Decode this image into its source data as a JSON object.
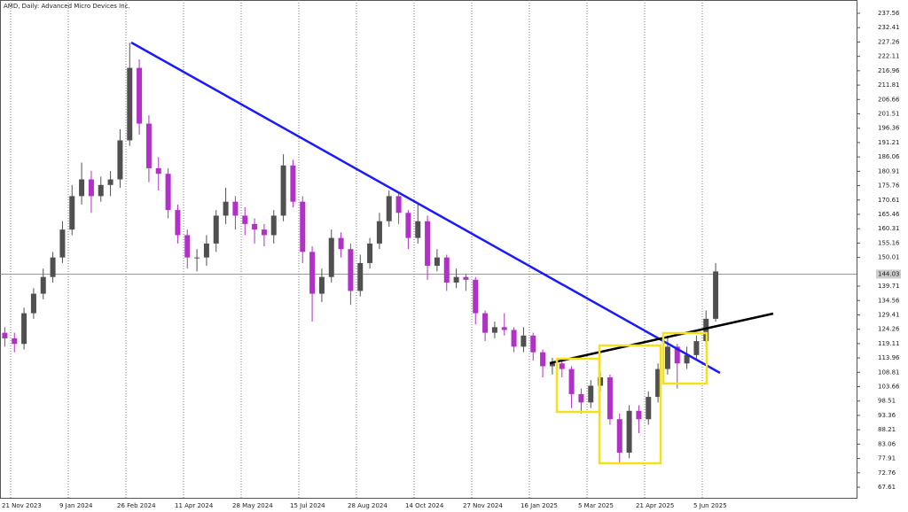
{
  "chart_data": {
    "type": "candlestick",
    "title": "AMD, Daily:  Advanced Micro Devices Inc.",
    "categories": [
      "21 Nov 2023",
      null,
      null,
      null,
      null,
      null,
      "9 Jan 2024",
      null,
      null,
      null,
      null,
      null,
      "26 Feb 2024",
      null,
      null,
      null,
      null,
      null,
      "11 Apr 2024",
      null,
      null,
      null,
      null,
      null,
      "28 May 2024",
      null,
      null,
      null,
      null,
      null,
      "15 Jul 2024",
      null,
      null,
      null,
      null,
      null,
      "28 Aug 2024",
      null,
      null,
      null,
      null,
      null,
      "14 Oct 2024",
      null,
      null,
      null,
      null,
      null,
      "27 Nov 2024",
      null,
      null,
      null,
      null,
      null,
      "16 Jan 2025",
      null,
      null,
      null,
      null,
      null,
      "5 Mar 2025",
      null,
      null,
      null,
      null,
      null,
      "21 Apr 2025",
      null,
      null,
      null,
      null,
      null,
      "5 Jun 2025",
      null,
      null
    ],
    "open": [
      123,
      121,
      119,
      130,
      137,
      143,
      150,
      160,
      172,
      178,
      172,
      176,
      178,
      192,
      218,
      198,
      182,
      180,
      167,
      158,
      150,
      150,
      155,
      165,
      170,
      165,
      162,
      160,
      158,
      165,
      183,
      170,
      152,
      137,
      143,
      157,
      153,
      138,
      148,
      155,
      163,
      172,
      166,
      157,
      163,
      147,
      150,
      141,
      143,
      142,
      130,
      123,
      125,
      124,
      118,
      122,
      116,
      111,
      112,
      110,
      101,
      98,
      104,
      107,
      92,
      80,
      95,
      92,
      100,
      110,
      118,
      112,
      115,
      120,
      128
    ],
    "high": [
      125,
      123,
      132,
      139,
      146,
      152,
      163,
      176,
      184,
      181,
      179,
      181,
      196,
      227,
      221,
      201,
      186,
      182,
      169,
      160,
      153,
      158,
      167,
      175,
      172,
      168,
      164,
      162,
      167,
      187,
      185,
      172,
      154,
      146,
      160,
      159,
      155,
      151,
      157,
      166,
      174,
      173,
      167,
      169,
      165,
      153,
      151,
      146,
      144,
      143,
      131,
      127,
      130,
      125,
      125,
      123,
      117,
      114,
      113,
      111,
      103,
      106,
      109,
      108,
      94,
      97,
      97,
      102,
      112,
      122,
      119,
      118,
      122,
      131,
      148
    ],
    "low": [
      118,
      116,
      117,
      128,
      135,
      141,
      148,
      158,
      169,
      166,
      170,
      172,
      175,
      190,
      194,
      177,
      174,
      164,
      155,
      146,
      145,
      147,
      152,
      162,
      160,
      158,
      155,
      154,
      155,
      163,
      168,
      148,
      127,
      134,
      141,
      150,
      133,
      136,
      146,
      153,
      161,
      162,
      153,
      155,
      142,
      145,
      138,
      139,
      138,
      126,
      120,
      121,
      122,
      116,
      116,
      113,
      107,
      108,
      107,
      96,
      94,
      96,
      102,
      90,
      76,
      78,
      87,
      90,
      98,
      108,
      103,
      110,
      113,
      118,
      127
    ],
    "close": [
      121,
      119,
      130,
      137,
      143,
      150,
      160,
      172,
      178,
      172,
      176,
      178,
      192,
      218,
      198,
      182,
      180,
      167,
      158,
      150,
      150,
      155,
      165,
      170,
      165,
      162,
      160,
      158,
      165,
      183,
      170,
      152,
      137,
      143,
      157,
      153,
      138,
      148,
      155,
      163,
      172,
      166,
      157,
      163,
      147,
      150,
      141,
      143,
      142,
      130,
      123,
      125,
      124,
      118,
      122,
      116,
      111,
      112,
      110,
      101,
      98,
      104,
      107,
      92,
      80,
      95,
      92,
      100,
      110,
      118,
      112,
      115,
      120,
      128,
      145
    ],
    "up_color": "#505050",
    "down_color": "#b030c8",
    "ylim": [
      63.8,
      242.33
    ],
    "yticks": [
      67.61,
      72.76,
      77.91,
      83.06,
      88.21,
      93.36,
      98.51,
      103.66,
      108.81,
      113.96,
      119.11,
      124.26,
      129.41,
      134.56,
      139.71,
      150.01,
      155.16,
      160.31,
      165.46,
      170.61,
      175.76,
      180.91,
      186.06,
      191.21,
      196.36,
      201.51,
      206.66,
      211.81,
      216.96,
      222.11,
      227.26,
      232.41,
      237.56
    ],
    "current_price": 144.03,
    "grid": true
  }
}
